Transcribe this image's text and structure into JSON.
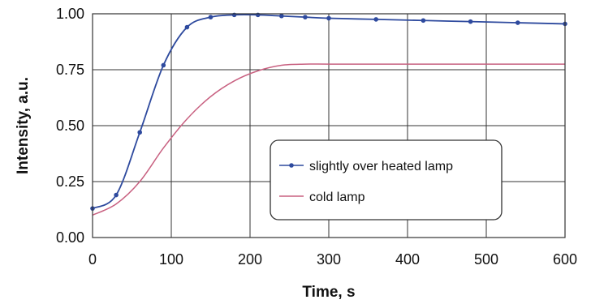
{
  "chart_data": {
    "type": "line",
    "title": "",
    "xlabel": "Time, s",
    "ylabel": "Intensity, a.u.",
    "xlim": [
      0,
      600
    ],
    "ylim": [
      0,
      1
    ],
    "x_ticks": [
      "0",
      "100",
      "200",
      "300",
      "400",
      "500",
      "600"
    ],
    "y_ticks": [
      "0.00",
      "0.25",
      "0.50",
      "0.75",
      "1.00"
    ],
    "grid": true,
    "legend_position": "lower-right",
    "series": [
      {
        "name": "slightly over heated lamp",
        "color": "#2e4a9e",
        "marker": "circle",
        "x": [
          0,
          30,
          60,
          90,
          120,
          150,
          180,
          210,
          240,
          270,
          300,
          360,
          420,
          480,
          540,
          600
        ],
        "y": [
          0.13,
          0.19,
          0.47,
          0.77,
          0.94,
          0.985,
          0.995,
          0.995,
          0.99,
          0.985,
          0.98,
          0.975,
          0.97,
          0.965,
          0.96,
          0.955
        ]
      },
      {
        "name": "cold lamp",
        "color": "#c86080",
        "marker": "none",
        "x": [
          0,
          30,
          60,
          90,
          120,
          150,
          180,
          210,
          240,
          270,
          300,
          360,
          420,
          480,
          540,
          600
        ],
        "y": [
          0.1,
          0.15,
          0.25,
          0.4,
          0.53,
          0.63,
          0.7,
          0.745,
          0.77,
          0.775,
          0.775,
          0.775,
          0.775,
          0.775,
          0.775,
          0.775
        ]
      }
    ]
  }
}
